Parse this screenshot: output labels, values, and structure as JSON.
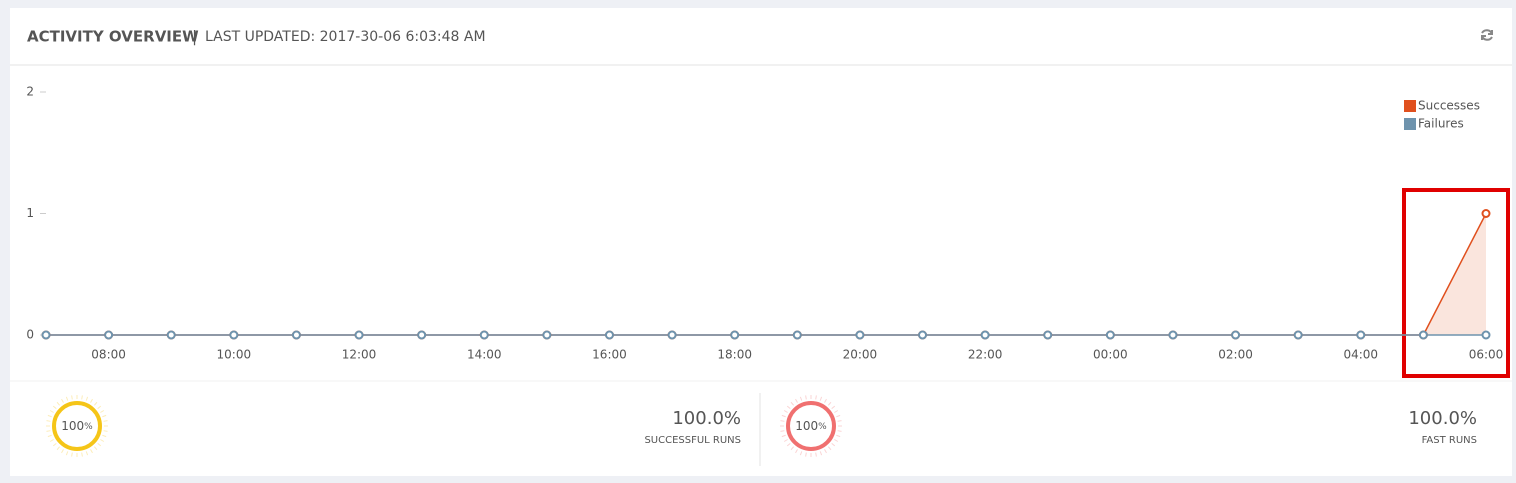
{
  "header": {
    "title": "ACTIVITY OVERVIEW",
    "separator": "|",
    "subtitle": "LAST UPDATED: 2017-30-06 6:03:48 AM"
  },
  "chart_data": {
    "type": "line",
    "categories": [
      null,
      "08:00",
      null,
      "10:00",
      null,
      "12:00",
      null,
      "14:00",
      null,
      "16:00",
      null,
      "18:00",
      null,
      "20:00",
      null,
      "22:00",
      null,
      "00:00",
      null,
      "02:00",
      null,
      "04:00",
      null,
      "06:00"
    ],
    "series": [
      {
        "name": "Successes",
        "color": "#e0501e",
        "values": [
          0,
          0,
          0,
          0,
          0,
          0,
          0,
          0,
          0,
          0,
          0,
          0,
          0,
          0,
          0,
          0,
          0,
          0,
          0,
          0,
          0,
          0,
          0,
          1
        ]
      },
      {
        "name": "Failures",
        "color": "#6e93ad",
        "values": [
          0,
          0,
          0,
          0,
          0,
          0,
          0,
          0,
          0,
          0,
          0,
          0,
          0,
          0,
          0,
          0,
          0,
          0,
          0,
          0,
          0,
          0,
          0,
          0
        ]
      }
    ],
    "ylim": [
      0,
      2
    ],
    "yticks": [
      0,
      1,
      2
    ],
    "legend": "upper right",
    "area": true
  },
  "stats": [
    {
      "gauge": "100",
      "gauge_unit": "%",
      "color": "#f5c518",
      "value": "100.0%",
      "label": "SUCCESSFUL RUNS"
    },
    {
      "gauge": "100",
      "gauge_unit": "%",
      "color": "#f07070",
      "value": "100.0%",
      "label": "FAST RUNS"
    }
  ]
}
